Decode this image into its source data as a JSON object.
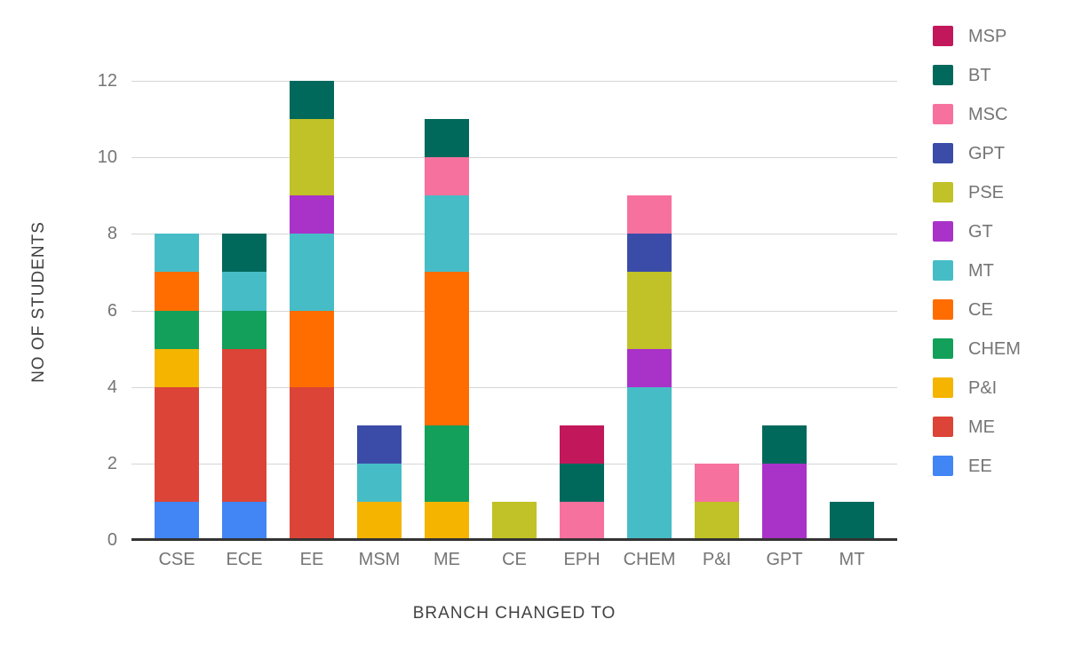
{
  "chart_data": {
    "type": "bar",
    "stacked": true,
    "title": "",
    "xlabel": "BRANCH CHANGED TO",
    "ylabel": "NO OF STUDENTS",
    "categories": [
      "CSE",
      "ECE",
      "EE",
      "MSM",
      "ME",
      "CE",
      "EPH",
      "CHEM",
      "P&I",
      "GPT",
      "MT"
    ],
    "series": [
      {
        "name": "EE",
        "color": "#4285F4",
        "values": [
          1,
          1,
          0,
          0,
          0,
          0,
          0,
          0,
          0,
          0,
          0
        ]
      },
      {
        "name": "ME",
        "color": "#DB4437",
        "values": [
          3,
          4,
          4,
          0,
          0,
          0,
          0,
          0,
          0,
          0,
          0
        ]
      },
      {
        "name": "P&I",
        "color": "#F4B400",
        "values": [
          1,
          0,
          0,
          1,
          1,
          0,
          0,
          0,
          0,
          0,
          0
        ]
      },
      {
        "name": "CHEM",
        "color": "#12A05A",
        "values": [
          1,
          1,
          0,
          0,
          2,
          0,
          0,
          0,
          0,
          0,
          0
        ]
      },
      {
        "name": "CE",
        "color": "#FF6D00",
        "values": [
          1,
          0,
          2,
          0,
          4,
          0,
          0,
          0,
          0,
          0,
          0
        ]
      },
      {
        "name": "MT",
        "color": "#46BDC6",
        "values": [
          1,
          1,
          2,
          1,
          2,
          0,
          0,
          4,
          0,
          0,
          0
        ]
      },
      {
        "name": "GT",
        "color": "#A932C9",
        "values": [
          0,
          0,
          1,
          0,
          0,
          0,
          0,
          1,
          0,
          2,
          0
        ]
      },
      {
        "name": "PSE",
        "color": "#C1C128",
        "values": [
          0,
          0,
          2,
          0,
          0,
          1,
          0,
          2,
          1,
          0,
          0
        ]
      },
      {
        "name": "GPT",
        "color": "#3B4CA8",
        "values": [
          0,
          0,
          0,
          1,
          0,
          0,
          0,
          1,
          0,
          0,
          0
        ]
      },
      {
        "name": "MSC",
        "color": "#F7719F",
        "values": [
          0,
          0,
          0,
          0,
          1,
          0,
          1,
          1,
          1,
          0,
          0
        ]
      },
      {
        "name": "BT",
        "color": "#00695C",
        "values": [
          0,
          1,
          1,
          0,
          1,
          0,
          1,
          0,
          0,
          1,
          1
        ]
      },
      {
        "name": "MSP",
        "color": "#C2185B",
        "values": [
          0,
          0,
          0,
          0,
          0,
          0,
          1,
          0,
          0,
          0,
          0
        ]
      }
    ],
    "bar_totals": {
      "CSE": 8,
      "ECE": 8,
      "EE": 12,
      "MSM": 3,
      "ME": 11,
      "CE": 1,
      "EPH": 3,
      "CHEM": 9,
      "P&I": 2,
      "GPT": 3,
      "MT": 1
    },
    "ylim": [
      0,
      12
    ],
    "yticks": [
      0,
      2,
      4,
      6,
      8,
      10,
      12
    ],
    "grid": true,
    "legend_position": "right",
    "legend_order": [
      "MSP",
      "BT",
      "MSC",
      "GPT",
      "PSE",
      "GT",
      "MT",
      "CE",
      "CHEM",
      "P&I",
      "ME",
      "EE"
    ]
  },
  "style_colors": {
    "background": "#ffffff",
    "grid": "#d6d6d6",
    "axis_line": "#333333",
    "tick_text": "#757575",
    "axis_title_text": "#424242",
    "legend_text": "#757575"
  }
}
